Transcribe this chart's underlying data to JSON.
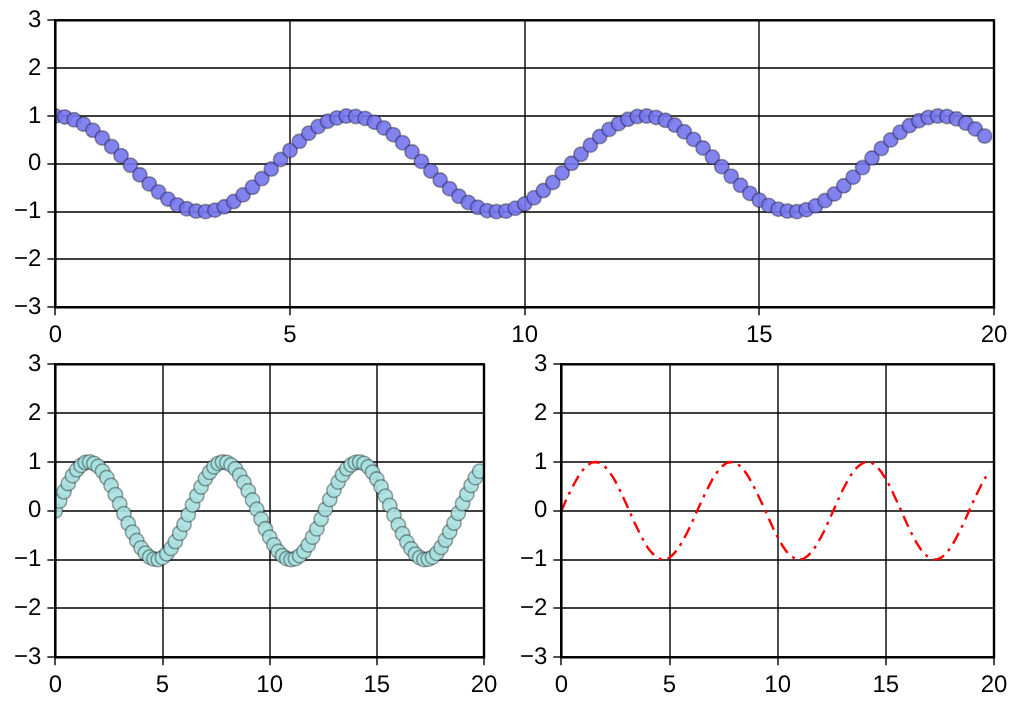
{
  "chart_data": [
    {
      "type": "scatter",
      "x": [
        0,
        0.2,
        0.4,
        0.6,
        0.8,
        1,
        1.2,
        1.4,
        1.6,
        1.8,
        2,
        2.2,
        2.4,
        2.6,
        2.8,
        3,
        3.2,
        3.4,
        3.6,
        3.8,
        4,
        4.2,
        4.4,
        4.6,
        4.8,
        5,
        5.2,
        5.4,
        5.6,
        5.8,
        6,
        6.2,
        6.4,
        6.6,
        6.8,
        7,
        7.2,
        7.4,
        7.6,
        7.8,
        8,
        8.2,
        8.4,
        8.6,
        8.8,
        9,
        9.2,
        9.4,
        9.6,
        9.8,
        10,
        10.2,
        10.4,
        10.6,
        10.8,
        11,
        11.2,
        11.4,
        11.6,
        11.8,
        12,
        12.2,
        12.4,
        12.6,
        12.8,
        13,
        13.2,
        13.4,
        13.6,
        13.8,
        14,
        14.2,
        14.4,
        14.6,
        14.8,
        15,
        15.2,
        15.4,
        15.6,
        15.8,
        16,
        16.2,
        16.4,
        16.6,
        16.8,
        17,
        17.2,
        17.4,
        17.6,
        17.8,
        18,
        18.2,
        18.4,
        18.6,
        18.8,
        19,
        19.2,
        19.4,
        19.6,
        19.8
      ],
      "series": [
        {
          "color": "#7676ee",
          "values": [
            1,
            0.98,
            0.92,
            0.83,
            0.7,
            0.54,
            0.36,
            0.17,
            -0.03,
            -0.23,
            -0.42,
            -0.59,
            -0.74,
            -0.86,
            -0.94,
            -0.99,
            -1,
            -0.97,
            -0.9,
            -0.79,
            -0.65,
            -0.49,
            -0.31,
            -0.11,
            0.09,
            0.28,
            0.47,
            0.64,
            0.78,
            0.89,
            0.96,
            1,
            0.99,
            0.95,
            0.87,
            0.75,
            0.61,
            0.44,
            0.25,
            0.05,
            -0.15,
            -0.34,
            -0.52,
            -0.68,
            -0.81,
            -0.91,
            -0.98,
            -1,
            -0.99,
            -0.93,
            -0.84,
            -0.71,
            -0.56,
            -0.39,
            -0.19,
            0.01,
            0.2,
            0.39,
            0.57,
            0.72,
            0.84,
            0.93,
            0.99,
            1,
            0.97,
            0.91,
            0.81,
            0.67,
            0.51,
            0.33,
            0.14,
            -0.06,
            -0.26,
            -0.45,
            -0.62,
            -0.76,
            -0.87,
            -0.95,
            -0.99,
            -1,
            -0.96,
            -0.88,
            -0.77,
            -0.63,
            -0.46,
            -0.28,
            -0.08,
            0.12,
            0.32,
            0.5,
            0.66,
            0.8,
            0.9,
            0.97,
            1,
            0.99,
            0.94,
            0.85,
            0.73,
            0.58
          ]
        }
      ],
      "xlim": [
        0,
        20
      ],
      "xticks": [
        0,
        5,
        10,
        15,
        20
      ],
      "ylim": [
        -3,
        3
      ],
      "yticks": [
        -3,
        -2,
        -1,
        0,
        1,
        2,
        3
      ],
      "grid": true,
      "marker": "circle",
      "legend": false
    },
    {
      "type": "scatter",
      "x": [
        0,
        0.2,
        0.4,
        0.6,
        0.8,
        1,
        1.2,
        1.4,
        1.6,
        1.8,
        2,
        2.2,
        2.4,
        2.6,
        2.8,
        3,
        3.2,
        3.4,
        3.6,
        3.8,
        4,
        4.2,
        4.4,
        4.6,
        4.8,
        5,
        5.2,
        5.4,
        5.6,
        5.8,
        6,
        6.2,
        6.4,
        6.6,
        6.8,
        7,
        7.2,
        7.4,
        7.6,
        7.8,
        8,
        8.2,
        8.4,
        8.6,
        8.8,
        9,
        9.2,
        9.4,
        9.6,
        9.8,
        10,
        10.2,
        10.4,
        10.6,
        10.8,
        11,
        11.2,
        11.4,
        11.6,
        11.8,
        12,
        12.2,
        12.4,
        12.6,
        12.8,
        13,
        13.2,
        13.4,
        13.6,
        13.8,
        14,
        14.2,
        14.4,
        14.6,
        14.8,
        15,
        15.2,
        15.4,
        15.6,
        15.8,
        16,
        16.2,
        16.4,
        16.6,
        16.8,
        17,
        17.2,
        17.4,
        17.6,
        17.8,
        18,
        18.2,
        18.4,
        18.6,
        18.8,
        19,
        19.2,
        19.4,
        19.6,
        19.8
      ],
      "series": [
        {
          "color": "#a8e0e0",
          "values": [
            0,
            0.2,
            0.39,
            0.56,
            0.72,
            0.84,
            0.93,
            0.99,
            1,
            0.97,
            0.91,
            0.81,
            0.68,
            0.52,
            0.33,
            0.14,
            -0.06,
            -0.26,
            -0.44,
            -0.61,
            -0.76,
            -0.87,
            -0.95,
            -0.99,
            -1,
            -0.96,
            -0.88,
            -0.77,
            -0.63,
            -0.46,
            -0.28,
            -0.08,
            0.12,
            0.31,
            0.49,
            0.66,
            0.79,
            0.9,
            0.97,
            1,
            0.99,
            0.94,
            0.86,
            0.73,
            0.58,
            0.41,
            0.22,
            0.03,
            -0.17,
            -0.37,
            -0.54,
            -0.7,
            -0.83,
            -0.92,
            -0.98,
            -1,
            -0.98,
            -0.92,
            -0.83,
            -0.7,
            -0.54,
            -0.37,
            -0.17,
            0.03,
            0.23,
            0.42,
            0.59,
            0.74,
            0.86,
            0.94,
            0.99,
            1,
            0.97,
            0.9,
            0.79,
            0.65,
            0.49,
            0.3,
            0.11,
            -0.09,
            -0.29,
            -0.47,
            -0.64,
            -0.78,
            -0.89,
            -0.96,
            -1,
            -0.99,
            -0.95,
            -0.87,
            -0.75,
            -0.6,
            -0.43,
            -0.25,
            -0.05,
            0.15,
            0.34,
            0.52,
            0.68,
            0.81
          ]
        }
      ],
      "xlim": [
        0,
        20
      ],
      "xticks": [
        0,
        5,
        10,
        15,
        20
      ],
      "ylim": [
        -3,
        3
      ],
      "yticks": [
        -3,
        -2,
        -1,
        0,
        1,
        2,
        3
      ],
      "grid": true,
      "marker": "circle",
      "legend": false
    },
    {
      "type": "line",
      "x": [
        0,
        0.2,
        0.4,
        0.6,
        0.8,
        1,
        1.2,
        1.4,
        1.6,
        1.8,
        2,
        2.2,
        2.4,
        2.6,
        2.8,
        3,
        3.2,
        3.4,
        3.6,
        3.8,
        4,
        4.2,
        4.4,
        4.6,
        4.8,
        5,
        5.2,
        5.4,
        5.6,
        5.8,
        6,
        6.2,
        6.4,
        6.6,
        6.8,
        7,
        7.2,
        7.4,
        7.6,
        7.8,
        8,
        8.2,
        8.4,
        8.6,
        8.8,
        9,
        9.2,
        9.4,
        9.6,
        9.8,
        10,
        10.2,
        10.4,
        10.6,
        10.8,
        11,
        11.2,
        11.4,
        11.6,
        11.8,
        12,
        12.2,
        12.4,
        12.6,
        12.8,
        13,
        13.2,
        13.4,
        13.6,
        13.8,
        14,
        14.2,
        14.4,
        14.6,
        14.8,
        15,
        15.2,
        15.4,
        15.6,
        15.8,
        16,
        16.2,
        16.4,
        16.6,
        16.8,
        17,
        17.2,
        17.4,
        17.6,
        17.8,
        18,
        18.2,
        18.4,
        18.6,
        18.8,
        19,
        19.2,
        19.4,
        19.6,
        19.8
      ],
      "series": [
        {
          "color": "#ff0000",
          "values": [
            0,
            0.2,
            0.39,
            0.56,
            0.72,
            0.84,
            0.93,
            0.99,
            1,
            0.97,
            0.91,
            0.81,
            0.68,
            0.52,
            0.33,
            0.14,
            -0.06,
            -0.26,
            -0.44,
            -0.61,
            -0.76,
            -0.87,
            -0.95,
            -0.99,
            -1,
            -0.96,
            -0.88,
            -0.77,
            -0.63,
            -0.46,
            -0.28,
            -0.08,
            0.12,
            0.31,
            0.49,
            0.66,
            0.79,
            0.9,
            0.97,
            1,
            0.99,
            0.94,
            0.86,
            0.73,
            0.58,
            0.41,
            0.22,
            0.03,
            -0.17,
            -0.37,
            -0.54,
            -0.7,
            -0.83,
            -0.92,
            -0.98,
            -1,
            -0.98,
            -0.92,
            -0.83,
            -0.7,
            -0.54,
            -0.37,
            -0.17,
            0.03,
            0.23,
            0.42,
            0.59,
            0.74,
            0.86,
            0.94,
            0.99,
            1,
            0.97,
            0.9,
            0.79,
            0.65,
            0.49,
            0.3,
            0.11,
            -0.09,
            -0.29,
            -0.47,
            -0.64,
            -0.78,
            -0.89,
            -0.96,
            -1,
            -0.99,
            -0.95,
            -0.87,
            -0.75,
            -0.6,
            -0.43,
            -0.25,
            -0.05,
            0.15,
            0.34,
            0.52,
            0.68,
            0.81
          ]
        }
      ],
      "xlim": [
        0,
        20
      ],
      "xticks": [
        0,
        5,
        10,
        15,
        20
      ],
      "ylim": [
        -3,
        3
      ],
      "yticks": [
        -3,
        -2,
        -1,
        0,
        1,
        2,
        3
      ],
      "grid": true,
      "marker": "none",
      "line_style": "dashed",
      "legend": false
    }
  ]
}
